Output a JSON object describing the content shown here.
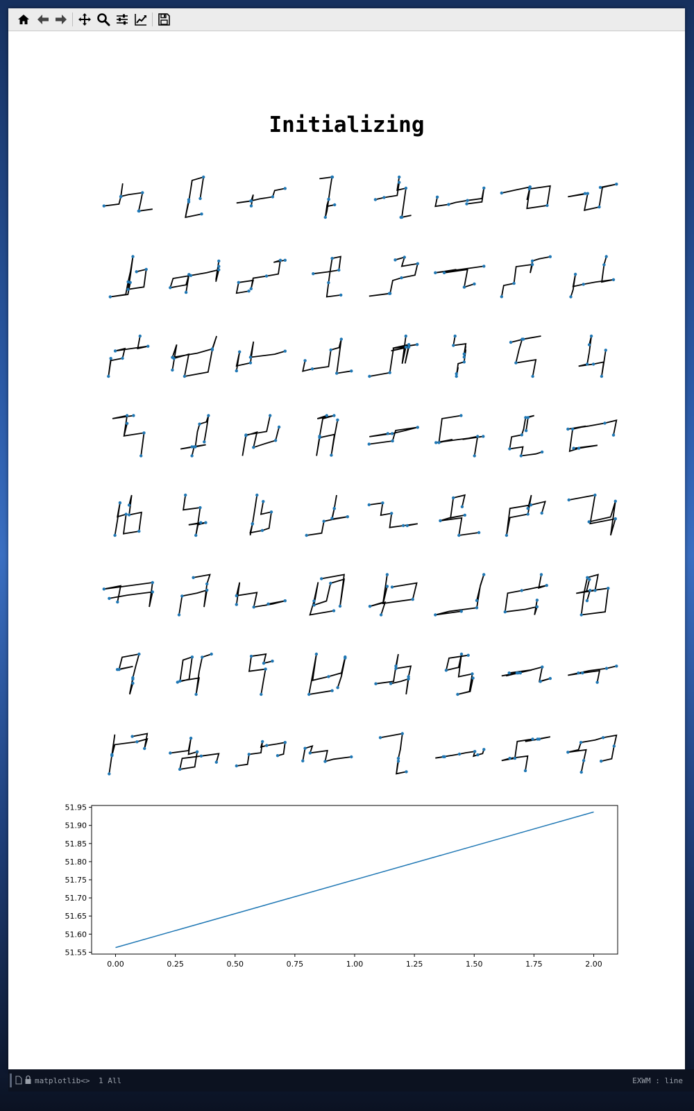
{
  "toolbar": {
    "buttons": [
      {
        "name": "home-icon",
        "label": "Home"
      },
      {
        "name": "back-icon",
        "label": "Back"
      },
      {
        "name": "forward-icon",
        "label": "Forward"
      },
      {
        "name": "pan-icon",
        "label": "Pan"
      },
      {
        "name": "zoom-icon",
        "label": "Zoom"
      },
      {
        "name": "configure-subplots-icon",
        "label": "Subplots"
      },
      {
        "name": "edit-axis-icon",
        "label": "Customize"
      },
      {
        "name": "save-icon",
        "label": "Save"
      }
    ]
  },
  "figure": {
    "title": "Initializing",
    "colors": {
      "walk": "#000000",
      "marker": "#1f77b4",
      "line": "#1f77b4"
    }
  },
  "chart_data": [
    {
      "type": "line",
      "title": "",
      "xlabel": "",
      "ylabel": "",
      "x": [
        0.0,
        2.0
      ],
      "series": [
        {
          "values": [
            51.563,
            51.937
          ]
        }
      ],
      "xlim": [
        -0.1,
        2.1
      ],
      "ylim": [
        51.545,
        51.955
      ],
      "xticks": [
        "0.00",
        "0.25",
        "0.50",
        "0.75",
        "1.00",
        "1.25",
        "1.50",
        "1.75",
        "2.00"
      ],
      "yticks": [
        "51.55",
        "51.60",
        "51.65",
        "51.70",
        "51.75",
        "51.80",
        "51.85",
        "51.90",
        "51.95"
      ],
      "grid": false
    }
  ],
  "modeline": {
    "buffer": "matplotlib<>",
    "position": "1 All",
    "mode": "EXWM : line"
  }
}
